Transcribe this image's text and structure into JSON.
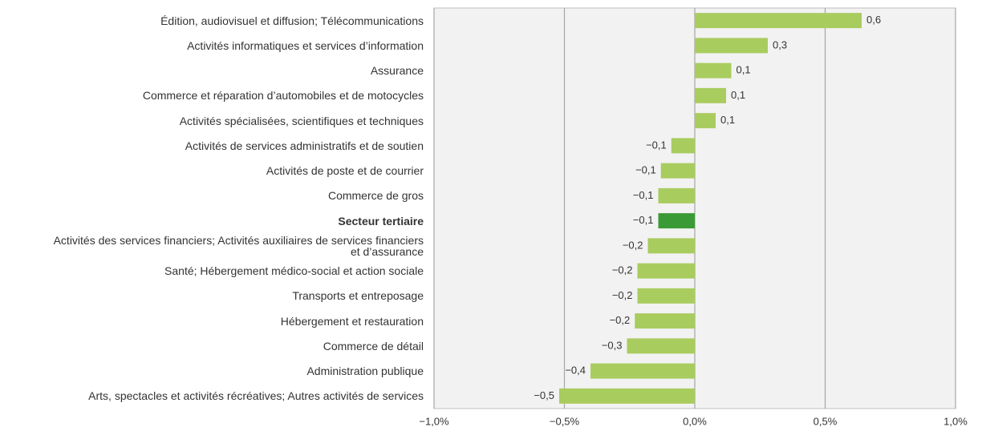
{
  "chart_data": {
    "type": "hbar",
    "categories": [
      "Édition, audiovisuel et diffusion; Télécommunications",
      "Activités informatiques et services d’information",
      "Assurance",
      "Commerce et réparation d’automobiles et de motocycles",
      "Activités spécialisées, scientifiques et techniques",
      "Activités de services administratifs et de soutien",
      "Activités de poste et de courrier",
      "Commerce de gros",
      "Secteur tertiaire",
      "Activités des services financiers; Activités auxiliaires de services financiers\net d’assurance",
      "Santé; Hébergement médico-social et action sociale",
      "Transports et entreposage",
      "Hébergement et restauration",
      "Commerce de détail",
      "Administration publique",
      "Arts, spectacles et activités récréatives; Autres activités de services"
    ],
    "values": [
      0.64,
      0.28,
      0.14,
      0.12,
      0.08,
      -0.09,
      -0.13,
      -0.14,
      -0.14,
      -0.18,
      -0.22,
      -0.22,
      -0.23,
      -0.26,
      -0.4,
      -0.52
    ],
    "value_labels": [
      "0,6",
      "0,3",
      "0,1",
      "0,1",
      "0,1",
      "−0,1",
      "−0,1",
      "−0,1",
      "−0,1",
      "−0,2",
      "−0,2",
      "−0,2",
      "−0,2",
      "−0,3",
      "−0,4",
      "−0,5"
    ],
    "color": "#a9cc5f",
    "highlight": 8,
    "highlight_color": "#3a9a35",
    "xlim": [
      -1.0,
      1.0
    ],
    "xticks": [
      {
        "value": -1.0,
        "label": "−1,0%"
      },
      {
        "value": -0.5,
        "label": "−0,5%"
      },
      {
        "value": 0,
        "label": "0,0%"
      },
      {
        "value": 0.5,
        "label": "0,5%"
      },
      {
        "value": 1.0,
        "label": "1,0%"
      }
    ],
    "grid": true
  }
}
